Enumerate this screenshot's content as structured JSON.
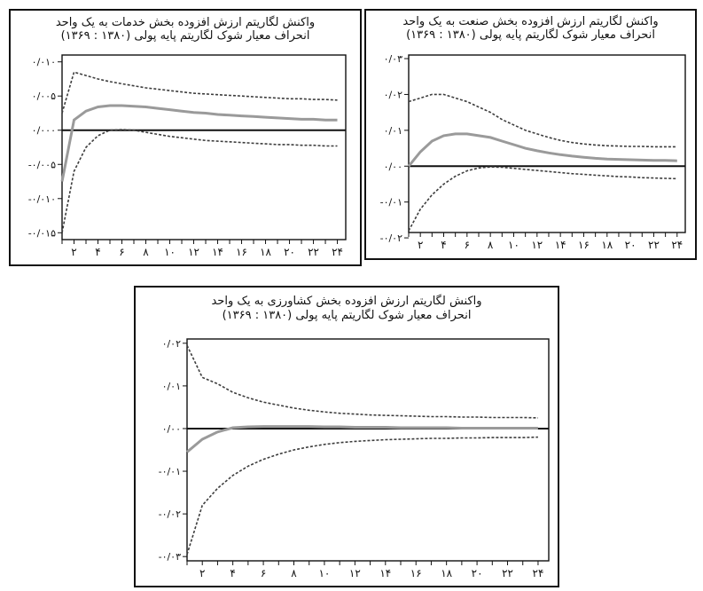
{
  "chart_data": [
    {
      "type": "line",
      "title": "واکنش لگاریتم ارزش افزوده بخش خدمات به یک واحد",
      "subtitle": "انحراف معیار شوک لگاریتم پایه پولی (۱۳۸۰ : ۱۳۶۹)",
      "x": [
        1,
        2,
        3,
        4,
        5,
        6,
        7,
        8,
        9,
        10,
        11,
        12,
        13,
        14,
        15,
        16,
        17,
        18,
        19,
        20,
        21,
        22,
        23,
        24
      ],
      "x_tick_values": [
        2,
        4,
        6,
        8,
        10,
        12,
        14,
        16,
        18,
        20,
        22,
        24
      ],
      "x_tick_labels": [
        "۲",
        "۴",
        "۶",
        "۸",
        "۱۰",
        "۱۲",
        "۱۴",
        "۱۶",
        "۱۸",
        "۲۰",
        "۲۲",
        "۲۴"
      ],
      "y_tick_values": [
        0.01,
        0.005,
        0.0,
        -0.005,
        -0.01,
        -0.015
      ],
      "y_tick_labels": [
        "۰/۰۱۰",
        "۰/۰۰۵",
        "۰/۰۰۰",
        "-۰/۰۰۵",
        "-۰/۰۱۰",
        "-۰/۰۱۵"
      ],
      "ylim": [
        -0.016,
        0.011
      ],
      "grid": false,
      "series": [
        {
          "role": "upper",
          "values": [
            0.0025,
            0.0085,
            0.008,
            0.0075,
            0.0071,
            0.0068,
            0.0065,
            0.0062,
            0.006,
            0.0058,
            0.0056,
            0.0054,
            0.0053,
            0.0052,
            0.0051,
            0.005,
            0.0049,
            0.0048,
            0.0047,
            0.0046,
            0.0046,
            0.0045,
            0.0045,
            0.0044
          ]
        },
        {
          "role": "response",
          "values": [
            -0.0075,
            0.0015,
            0.0028,
            0.0034,
            0.0036,
            0.0036,
            0.0035,
            0.0034,
            0.0032,
            0.003,
            0.0028,
            0.0026,
            0.0025,
            0.0023,
            0.0022,
            0.0021,
            0.002,
            0.0019,
            0.0018,
            0.0017,
            0.0016,
            0.0016,
            0.0015,
            0.0015
          ]
        },
        {
          "role": "lower",
          "values": [
            -0.015,
            -0.006,
            -0.0025,
            -0.0008,
            0.0,
            0.0001,
            0.0,
            -0.0003,
            -0.0006,
            -0.0009,
            -0.0011,
            -0.0013,
            -0.0015,
            -0.0016,
            -0.0017,
            -0.0018,
            -0.0019,
            -0.002,
            -0.0021,
            -0.0021,
            -0.0022,
            -0.0022,
            -0.0023,
            -0.0023
          ]
        }
      ]
    },
    {
      "type": "line",
      "title": "واکنش لگاریتم ارزش افزوده بخش صنعت به یک واحد",
      "subtitle": "انحراف معیار شوک لگاریتم پایه پولی (۱۳۸۰ : ۱۳۶۹)",
      "x": [
        1,
        2,
        3,
        4,
        5,
        6,
        7,
        8,
        9,
        10,
        11,
        12,
        13,
        14,
        15,
        16,
        17,
        18,
        19,
        20,
        21,
        22,
        23,
        24
      ],
      "x_tick_values": [
        2,
        4,
        6,
        8,
        10,
        12,
        14,
        16,
        18,
        20,
        22,
        24
      ],
      "x_tick_labels": [
        "۲",
        "۴",
        "۶",
        "۸",
        "۱۰",
        "۱۲",
        "۱۴",
        "۱۶",
        "۱۸",
        "۲۰",
        "۲۲",
        "۲۴"
      ],
      "y_tick_values": [
        0.03,
        0.02,
        0.01,
        0.0,
        -0.01,
        -0.02
      ],
      "y_tick_labels": [
        "۰/۰۳",
        "۰/۰۲",
        "۰/۰۱",
        "۰/۰۰",
        "-۰/۰۱",
        "-۰/۰۲"
      ],
      "ylim": [
        -0.0185,
        0.031
      ],
      "grid": false,
      "series": [
        {
          "role": "upper",
          "values": [
            0.018,
            0.019,
            0.02,
            0.02,
            0.019,
            0.018,
            0.0165,
            0.015,
            0.013,
            0.0115,
            0.01,
            0.009,
            0.008,
            0.0072,
            0.0066,
            0.0062,
            0.0059,
            0.0057,
            0.0056,
            0.0055,
            0.0055,
            0.0054,
            0.0054,
            0.0054
          ]
        },
        {
          "role": "response",
          "values": [
            0.0,
            0.004,
            0.007,
            0.0085,
            0.009,
            0.009,
            0.0085,
            0.008,
            0.007,
            0.006,
            0.005,
            0.0043,
            0.0037,
            0.0032,
            0.0028,
            0.0025,
            0.0022,
            0.002,
            0.0019,
            0.0018,
            0.0017,
            0.0016,
            0.0016,
            0.0015
          ]
        },
        {
          "role": "lower",
          "values": [
            -0.018,
            -0.012,
            -0.008,
            -0.005,
            -0.0028,
            -0.0013,
            -0.0005,
            -0.0002,
            -0.0003,
            -0.0006,
            -0.0009,
            -0.0012,
            -0.0015,
            -0.0018,
            -0.0021,
            -0.0023,
            -0.0025,
            -0.0027,
            -0.0029,
            -0.003,
            -0.0032,
            -0.0033,
            -0.0034,
            -0.0035
          ]
        }
      ]
    },
    {
      "type": "line",
      "title": "واکنش لگاریتم ارزش افزوده بخش کشاورزی به یک واحد",
      "subtitle": "انحراف معیار شوک لگاریتم پایه پولی (۱۳۸۰ : ۱۳۶۹)",
      "x": [
        1,
        2,
        3,
        4,
        5,
        6,
        7,
        8,
        9,
        10,
        11,
        12,
        13,
        14,
        15,
        16,
        17,
        18,
        19,
        20,
        21,
        22,
        23,
        24
      ],
      "x_tick_values": [
        2,
        4,
        6,
        8,
        10,
        12,
        14,
        16,
        18,
        20,
        22,
        24
      ],
      "x_tick_labels": [
        "۲",
        "۴",
        "۶",
        "۸",
        "۱۰",
        "۱۲",
        "۱۴",
        "۱۶",
        "۱۸",
        "۲۰",
        "۲۲",
        "۲۴"
      ],
      "y_tick_values": [
        0.02,
        0.01,
        0.0,
        -0.01,
        -0.02,
        -0.03
      ],
      "y_tick_labels": [
        "۰/۰۲",
        "۰/۰۱",
        "۰/۰۰",
        "-۰/۰۱",
        "-۰/۰۲",
        "-۰/۰۳"
      ],
      "ylim": [
        -0.031,
        0.021
      ],
      "grid": false,
      "series": [
        {
          "role": "upper",
          "values": [
            0.0195,
            0.012,
            0.0105,
            0.0085,
            0.0072,
            0.0062,
            0.0055,
            0.0048,
            0.0043,
            0.0039,
            0.0036,
            0.0034,
            0.0032,
            0.0031,
            0.003,
            0.0029,
            0.0028,
            0.0028,
            0.0027,
            0.0027,
            0.0026,
            0.0026,
            0.0026,
            0.0025
          ]
        },
        {
          "role": "response",
          "values": [
            -0.0055,
            -0.0025,
            -0.0008,
            0.0002,
            0.0004,
            0.0005,
            0.0005,
            0.0005,
            0.0005,
            0.0004,
            0.0004,
            0.0003,
            0.0003,
            0.0003,
            0.0002,
            0.0002,
            0.0002,
            0.0002,
            0.0001,
            0.0001,
            0.0001,
            0.0001,
            0.0001,
            0.0001
          ]
        },
        {
          "role": "lower",
          "values": [
            -0.0295,
            -0.018,
            -0.014,
            -0.011,
            -0.0088,
            -0.0072,
            -0.006,
            -0.005,
            -0.0043,
            -0.0037,
            -0.0033,
            -0.003,
            -0.0028,
            -0.0026,
            -0.0025,
            -0.0024,
            -0.0023,
            -0.0023,
            -0.0022,
            -0.0022,
            -0.0021,
            -0.0021,
            -0.0021,
            -0.002
          ]
        }
      ]
    }
  ],
  "colors": {
    "response": "#9a9a9a",
    "band": "#3d3d3d",
    "zero_line": "#111111",
    "frame": "#111111"
  }
}
